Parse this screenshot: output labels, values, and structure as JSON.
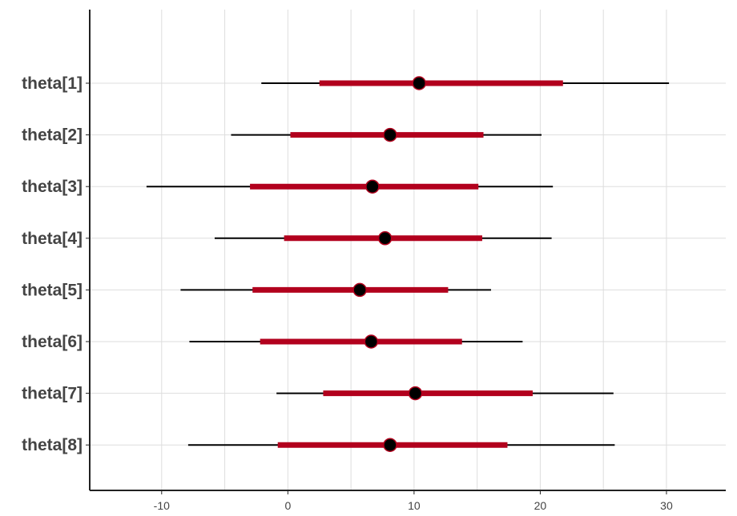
{
  "chart_data": {
    "type": "interval",
    "categories": [
      "theta[1]",
      "theta[2]",
      "theta[3]",
      "theta[4]",
      "theta[5]",
      "theta[6]",
      "theta[7]",
      "theta[8]"
    ],
    "series": [
      {
        "point_estimate": [
          10.4,
          8.1,
          6.7,
          7.7,
          5.7,
          6.6,
          10.1,
          8.1
        ],
        "inner_interval": [
          [
            2.5,
            21.8
          ],
          [
            0.2,
            15.5
          ],
          [
            -3.0,
            15.1
          ],
          [
            -0.3,
            15.4
          ],
          [
            -2.8,
            12.7
          ],
          [
            -2.2,
            13.8
          ],
          [
            2.8,
            19.4
          ],
          [
            -0.8,
            17.4
          ]
        ],
        "outer_interval": [
          [
            -2.1,
            30.2
          ],
          [
            -4.5,
            20.1
          ],
          [
            -11.2,
            21.0
          ],
          [
            -5.8,
            20.9
          ],
          [
            -8.5,
            16.1
          ],
          [
            -7.8,
            18.6
          ],
          [
            -0.9,
            25.8
          ],
          [
            -7.9,
            25.9
          ]
        ]
      }
    ],
    "xlim": [
      -15.7,
      34.7
    ],
    "xticks": [
      "-10",
      "0",
      "10",
      "20",
      "30"
    ],
    "xtick_values": [
      -10,
      0,
      10,
      20,
      30
    ],
    "grid": true,
    "title": "",
    "xlabel": "",
    "ylabel": "",
    "colors": {
      "inner": "#b2001d",
      "outer": "#000000",
      "point_fill": "#000000",
      "point_stroke": "#b2001d",
      "grid": "#dddddd",
      "axis": "#222222",
      "label": "#444444"
    }
  }
}
